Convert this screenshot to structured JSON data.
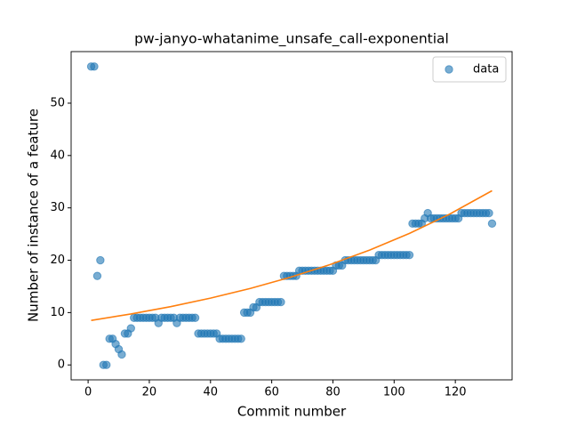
{
  "chart_data": {
    "type": "scatter",
    "title": "pw-janyo-whatanime_unsafe_call-exponential",
    "x_label": "Commit number",
    "y_label": "Number of instance of a feature",
    "xlim": [
      -5.55,
      138.55
    ],
    "ylim": [
      -2.85,
      59.85
    ],
    "xticks": [
      0,
      20,
      40,
      60,
      80,
      100,
      120
    ],
    "yticks": [
      0,
      10,
      20,
      30,
      40,
      50
    ],
    "legend": "upper right",
    "series": [
      {
        "name": "data",
        "type": "scatter",
        "color": "#1f77b4",
        "x": [
          1,
          2,
          3,
          4,
          5,
          6,
          7,
          8,
          9,
          10,
          11,
          12,
          13,
          14,
          15,
          16,
          17,
          18,
          19,
          20,
          21,
          22,
          23,
          24,
          25,
          26,
          27,
          28,
          29,
          30,
          31,
          32,
          33,
          34,
          35,
          36,
          37,
          38,
          39,
          40,
          41,
          42,
          43,
          44,
          45,
          46,
          47,
          48,
          49,
          50,
          51,
          52,
          53,
          54,
          55,
          56,
          57,
          58,
          59,
          60,
          61,
          62,
          63,
          64,
          65,
          66,
          67,
          68,
          69,
          70,
          71,
          72,
          73,
          74,
          75,
          76,
          77,
          78,
          79,
          80,
          81,
          82,
          83,
          84,
          85,
          86,
          87,
          88,
          89,
          90,
          91,
          92,
          93,
          94,
          95,
          96,
          97,
          98,
          99,
          100,
          101,
          102,
          103,
          104,
          105,
          106,
          107,
          108,
          109,
          110,
          111,
          112,
          113,
          114,
          115,
          116,
          117,
          118,
          119,
          120,
          121,
          122,
          123,
          124,
          125,
          126,
          127,
          128,
          129,
          130,
          131,
          132
        ],
        "values": [
          57,
          57,
          17,
          20,
          0,
          0,
          5,
          5,
          4,
          3,
          2,
          6,
          6,
          7,
          9,
          9,
          9,
          9,
          9,
          9,
          9,
          9,
          8,
          9,
          9,
          9,
          9,
          9,
          8,
          9,
          9,
          9,
          9,
          9,
          9,
          6,
          6,
          6,
          6,
          6,
          6,
          6,
          5,
          5,
          5,
          5,
          5,
          5,
          5,
          5,
          10,
          10,
          10,
          11,
          11,
          12,
          12,
          12,
          12,
          12,
          12,
          12,
          12,
          17,
          17,
          17,
          17,
          17,
          18,
          18,
          18,
          18,
          18,
          18,
          18,
          18,
          18,
          18,
          18,
          18,
          19,
          19,
          19,
          20,
          20,
          20,
          20,
          20,
          20,
          20,
          20,
          20,
          20,
          20,
          21,
          21,
          21,
          21,
          21,
          21,
          21,
          21,
          21,
          21,
          21,
          27,
          27,
          27,
          27,
          28,
          29,
          28,
          28,
          28,
          28,
          28,
          28,
          28,
          28,
          28,
          28,
          29,
          29,
          29,
          29,
          29,
          29,
          29,
          29,
          29,
          29,
          27
        ]
      },
      {
        "type": "line",
        "color": "#ff7f0e",
        "x": [
          1,
          14,
          27,
          40,
          53,
          66,
          79,
          92,
          105,
          118,
          132
        ],
        "values": [
          8.5,
          9.73,
          11.14,
          12.76,
          14.61,
          16.73,
          19.16,
          21.93,
          25.12,
          28.76,
          33.28
        ]
      }
    ]
  }
}
